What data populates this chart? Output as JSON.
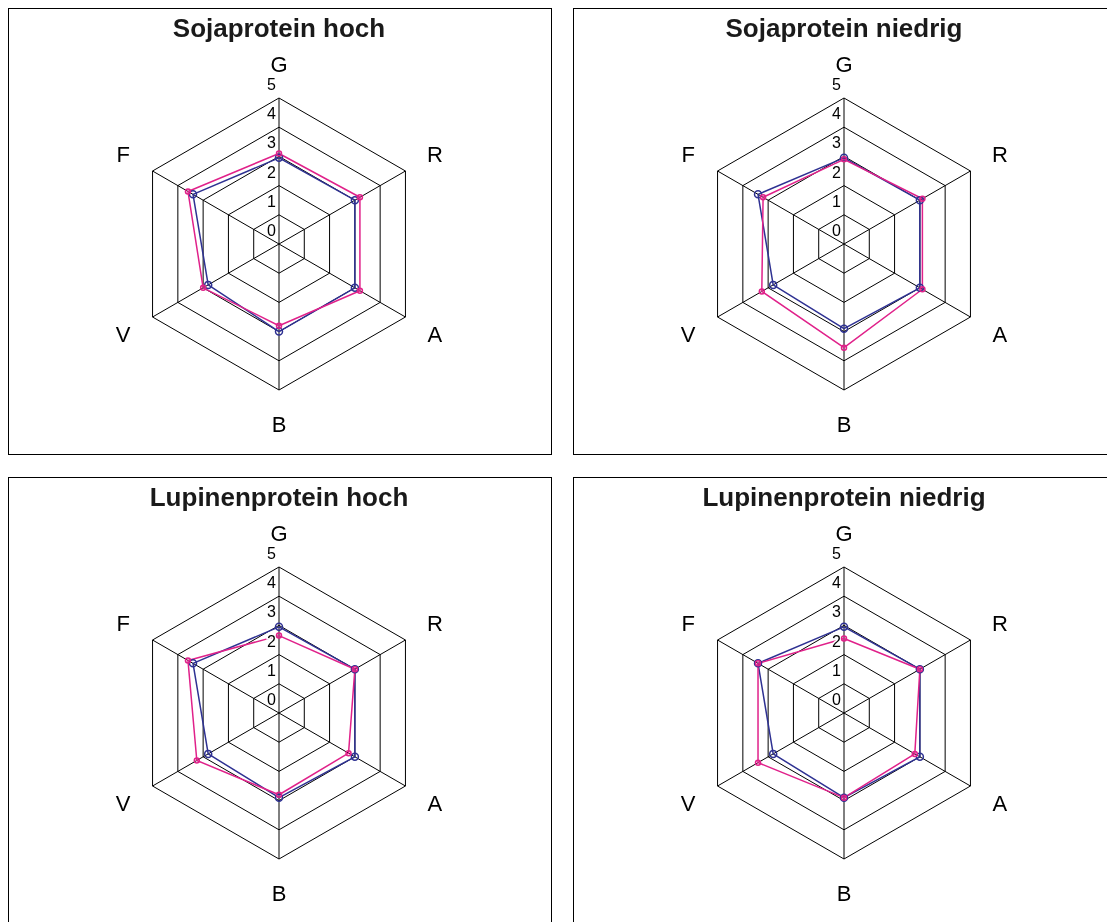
{
  "chart_data": [
    {
      "type": "radar",
      "title": "Sojaprotein hoch",
      "categories": [
        "G",
        "R",
        "A",
        "B",
        "V",
        "F"
      ],
      "ylim": [
        0,
        5
      ],
      "yticks": [
        0,
        1,
        2,
        3,
        4,
        5
      ],
      "grid": true,
      "marker": "circle",
      "series": [
        {
          "color": "#2e3192",
          "values": [
            2.95,
            3.0,
            3.0,
            3.0,
            2.8,
            3.4
          ]
        },
        {
          "color": "#e0218a",
          "values": [
            3.1,
            3.2,
            3.2,
            2.8,
            3.0,
            3.6
          ]
        }
      ]
    },
    {
      "type": "radar",
      "title": "Sojaprotein niedrig",
      "categories": [
        "G",
        "R",
        "A",
        "B",
        "V",
        "F"
      ],
      "ylim": [
        0,
        5
      ],
      "yticks": [
        0,
        1,
        2,
        3,
        4,
        5
      ],
      "grid": true,
      "marker": "circle",
      "series": [
        {
          "color": "#2e3192",
          "values": [
            2.95,
            3.0,
            3.0,
            2.9,
            2.8,
            3.4
          ]
        },
        {
          "color": "#e0218a",
          "values": [
            2.9,
            3.1,
            3.1,
            3.55,
            3.25,
            3.2
          ]
        }
      ]
    },
    {
      "type": "radar",
      "title": "Lupinenprotein hoch",
      "categories": [
        "G",
        "R",
        "A",
        "B",
        "V",
        "F"
      ],
      "ylim": [
        0,
        5
      ],
      "yticks": [
        0,
        1,
        2,
        3,
        4,
        5
      ],
      "grid": true,
      "marker": "circle",
      "series": [
        {
          "color": "#2e3192",
          "values": [
            2.95,
            3.0,
            3.0,
            2.9,
            2.8,
            3.4
          ]
        },
        {
          "color": "#e0218a",
          "values": [
            2.65,
            3.0,
            2.75,
            2.8,
            3.25,
            3.6
          ]
        }
      ]
    },
    {
      "type": "radar",
      "title": "Lupinenprotein niedrig",
      "categories": [
        "G",
        "R",
        "A",
        "B",
        "V",
        "F"
      ],
      "ylim": [
        0,
        5
      ],
      "yticks": [
        0,
        1,
        2,
        3,
        4,
        5
      ],
      "grid": true,
      "marker": "circle",
      "series": [
        {
          "color": "#2e3192",
          "values": [
            2.95,
            3.0,
            3.0,
            2.9,
            2.8,
            3.4
          ]
        },
        {
          "color": "#e0218a",
          "values": [
            2.55,
            3.0,
            2.8,
            2.9,
            3.4,
            3.4
          ]
        }
      ]
    }
  ]
}
